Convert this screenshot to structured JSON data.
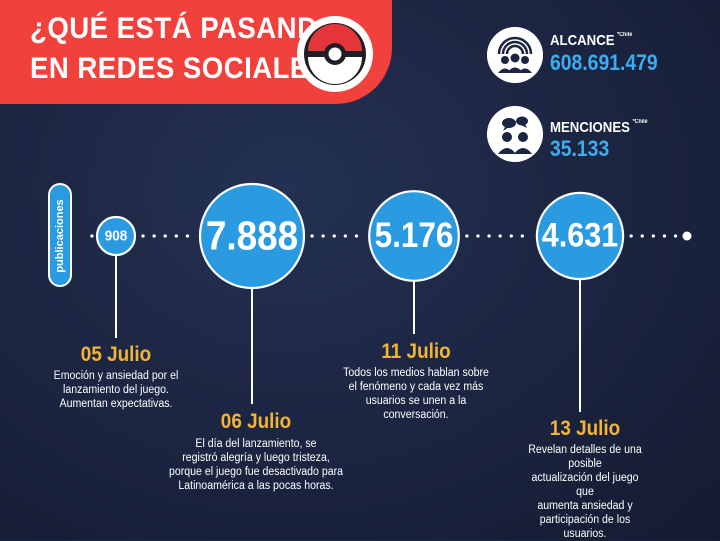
{
  "header": {
    "title_line1": "¿QUÉ ESTÁ  PASANDO",
    "title_line2": "EN REDES SOCIALES?"
  },
  "stats": {
    "reach": {
      "label": "ALCANCE",
      "note": "*Chile",
      "value": "608.691.479",
      "icon": "audience-icon"
    },
    "mentions": {
      "label": "MENCIONES",
      "note": "*Chile",
      "value": "35.133",
      "icon": "people-chat-icon"
    }
  },
  "colors": {
    "background": "#1b2440",
    "banner": "#f0413c",
    "bubble": "#2a9be0",
    "accent_value": "#39aef0",
    "date": "#f5b335"
  },
  "chart_data": {
    "type": "scatter",
    "ylabel": "publicaciones",
    "categories": [
      "05 Julio",
      "06 Julio",
      "11 Julio",
      "13 Julio"
    ],
    "values": [
      908,
      7888,
      5176,
      4631
    ],
    "value_labels": [
      "908",
      "7.888",
      "5.176",
      "4.631"
    ],
    "annotations": [
      {
        "date": "05 Julio",
        "text": "Emoción y ansiedad por el\nlanzamiento del juego.\nAumentan expectativas."
      },
      {
        "date": "06 Julio",
        "text": "El día del lanzamiento, se\nregistró alegría y luego tristeza,\nporque el juego fue desactivado para\nLatinoamérica a las pocas horas."
      },
      {
        "date": "11 Julio",
        "text": "Todos los medios hablan sobre\nel fenómeno y cada vez más\nusuarios se unen a la\nconversación."
      },
      {
        "date": "13 Julio",
        "text": "Revelan detalles de una posible\nactualización del juego que\naumenta ansiedad y\nparticipación de los usuarios."
      }
    ]
  }
}
